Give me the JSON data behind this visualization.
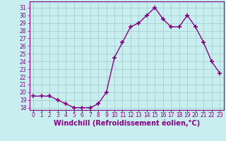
{
  "x": [
    0,
    1,
    2,
    3,
    4,
    5,
    6,
    7,
    8,
    9,
    10,
    11,
    12,
    13,
    14,
    15,
    16,
    17,
    18,
    19,
    20,
    21,
    22,
    23
  ],
  "y": [
    19.5,
    19.5,
    19.5,
    19.0,
    18.5,
    18.0,
    18.0,
    18.0,
    18.5,
    20.0,
    24.5,
    26.5,
    28.5,
    29.0,
    30.0,
    31.0,
    29.5,
    28.5,
    28.5,
    30.0,
    28.5,
    26.5,
    24.0,
    22.5
  ],
  "line_color": "#880088",
  "marker": "+",
  "marker_size": 4,
  "marker_lw": 1.2,
  "bg_color": "#c8eef0",
  "grid_color": "#a0cccc",
  "xlabel": "Windchill (Refroidissement éolien,°C)",
  "xlabel_color": "#880088",
  "ylabel_ticks": [
    18,
    19,
    20,
    21,
    22,
    23,
    24,
    25,
    26,
    27,
    28,
    29,
    30,
    31
  ],
  "ylim": [
    17.7,
    31.8
  ],
  "xlim": [
    -0.5,
    23.5
  ],
  "tick_color": "#880088",
  "tick_fontsize": 5.5,
  "xlabel_fontsize": 7.0,
  "line_width": 1.0
}
